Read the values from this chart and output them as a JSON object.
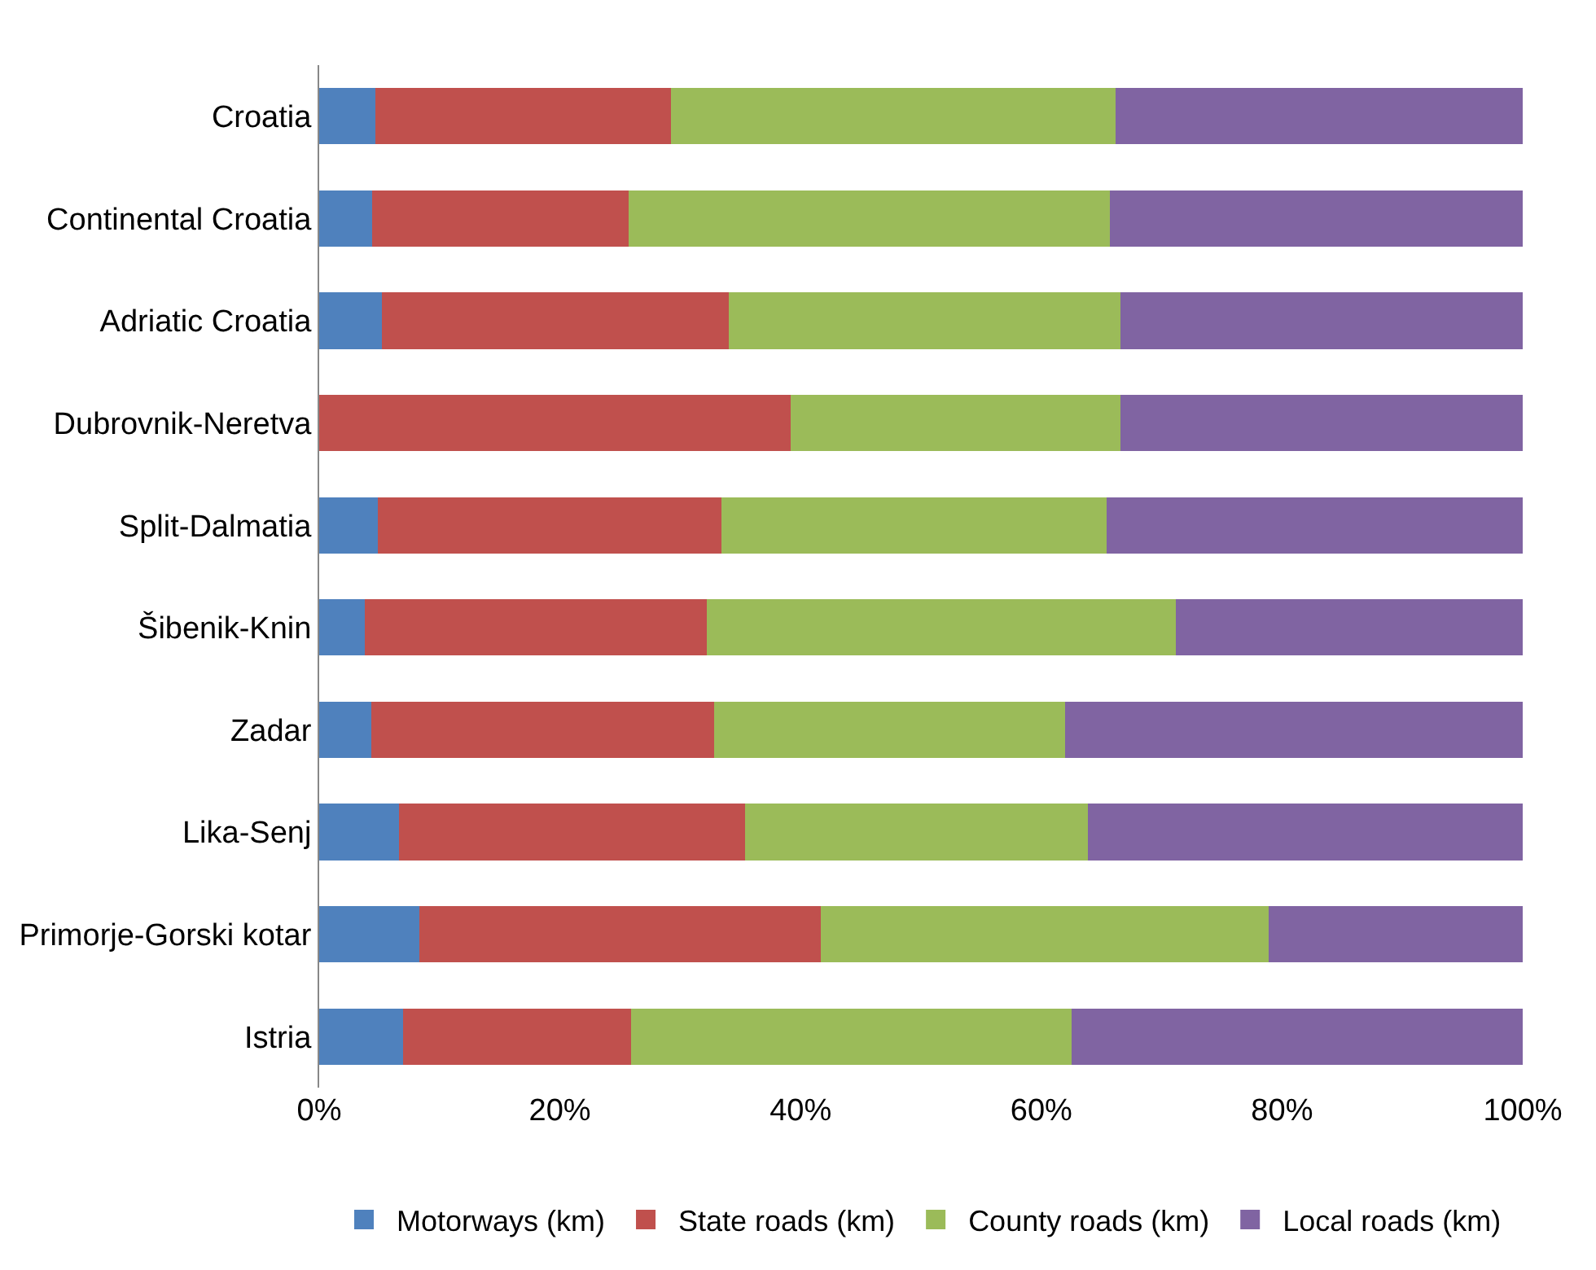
{
  "chart_data": {
    "type": "bar",
    "orientation": "horizontal",
    "stacked": true,
    "categories": [
      "Croatia",
      "Continental Croatia",
      "Adriatic Croatia",
      "Dubrovnik-Neretva",
      "Split-Dalmatia",
      "Šibenik-Knin",
      "Zadar",
      "Lika-Senj",
      "Primorje-Gorski kotar",
      "Istria"
    ],
    "series": [
      {
        "name": "Motorways (km)",
        "color": "#4f81bd",
        "values": [
          4.7,
          4.4,
          5.2,
          0,
          4.9,
          3.8,
          4.3,
          6.6,
          8.3,
          7.0
        ]
      },
      {
        "name": "State roads (km)",
        "color": "#c0504d",
        "values": [
          24.5,
          21.3,
          28.8,
          39.2,
          28.5,
          28.4,
          28.5,
          28.8,
          33.4,
          18.9
        ]
      },
      {
        "name": "County roads (km)",
        "color": "#9bbb59",
        "values": [
          37.0,
          40.0,
          32.6,
          27.4,
          32.0,
          39.0,
          29.2,
          28.5,
          37.2,
          36.6
        ]
      },
      {
        "name": "Local roads (km)",
        "color": "#8064a2",
        "values": [
          33.8,
          34.3,
          33.4,
          33.4,
          34.6,
          28.8,
          38.0,
          36.1,
          21.1,
          37.5
        ]
      }
    ],
    "xlim": [
      0,
      100
    ],
    "xticks": [
      {
        "value": 0,
        "label": "0%"
      },
      {
        "value": 20,
        "label": "20%"
      },
      {
        "value": 40,
        "label": "40%"
      },
      {
        "value": 60,
        "label": "60%"
      },
      {
        "value": 80,
        "label": "80%"
      },
      {
        "value": 100,
        "label": "100%"
      }
    ],
    "legend": "bottom"
  }
}
